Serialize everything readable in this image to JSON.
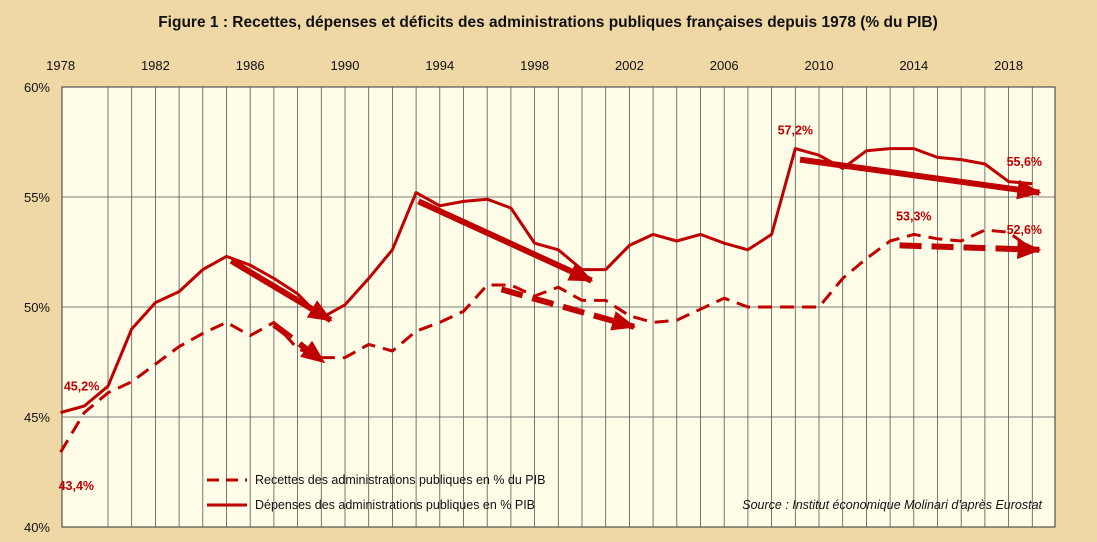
{
  "chart_data": {
    "type": "line",
    "title": "Figure 1 : Recettes, dépenses et déficits des administrations publiques françaises depuis 1978 (% du PIB)",
    "x_tick_labels": [
      "1978",
      "1982",
      "1986",
      "1990",
      "1994",
      "1998",
      "2002",
      "2006",
      "2010",
      "2014",
      "2018"
    ],
    "y_tick_labels": [
      "40%",
      "45%",
      "50%",
      "55%",
      "60%"
    ],
    "y_ticks": [
      40,
      45,
      50,
      55,
      60
    ],
    "xlim": [
      1978,
      2019.6
    ],
    "ylim": [
      40,
      60
    ],
    "grid": true,
    "legend_placement": "bottom-left",
    "x": [
      1978,
      1979,
      1980,
      1981,
      1982,
      1983,
      1984,
      1985,
      1986,
      1987,
      1988,
      1989,
      1990,
      1991,
      1992,
      1993,
      1994,
      1995,
      1996,
      1997,
      1998,
      1999,
      2000,
      2001,
      2002,
      2003,
      2004,
      2005,
      2006,
      2007,
      2008,
      2009,
      2010,
      2011,
      2012,
      2013,
      2014,
      2015,
      2016,
      2017,
      2018,
      2019
    ],
    "series": [
      {
        "name": "Recettes des administrations publiques en % du PIB",
        "style": "dashed",
        "color": "#c00000",
        "values": [
          43.4,
          45.2,
          46.1,
          46.6,
          47.4,
          48.2,
          48.8,
          49.3,
          48.7,
          49.3,
          48.1,
          47.7,
          47.7,
          48.3,
          48.0,
          48.9,
          49.3,
          49.8,
          51.0,
          51.0,
          50.5,
          50.9,
          50.3,
          50.3,
          49.6,
          49.3,
          49.4,
          49.9,
          50.4,
          50.0,
          50.0,
          50.0,
          50.0,
          51.3,
          52.2,
          53.0,
          53.3,
          53.1,
          53.0,
          53.5,
          53.4,
          52.6
        ]
      },
      {
        "name": "Dépenses des administrations publiques en % PIB",
        "style": "solid",
        "color": "#c00000",
        "values": [
          45.2,
          45.5,
          46.4,
          49.0,
          50.2,
          50.7,
          51.7,
          52.3,
          51.9,
          51.3,
          50.6,
          49.5,
          50.1,
          51.3,
          52.6,
          55.2,
          54.6,
          54.8,
          54.9,
          54.5,
          52.9,
          52.6,
          51.7,
          51.7,
          52.8,
          53.3,
          53.0,
          53.3,
          52.9,
          52.6,
          53.3,
          57.2,
          56.9,
          56.3,
          57.1,
          57.2,
          57.2,
          56.8,
          56.7,
          56.5,
          55.7,
          55.6
        ]
      }
    ],
    "trend_arrows": [
      {
        "series": "solid",
        "from": [
          1985.2,
          52.1
        ],
        "to": [
          1989.4,
          49.4
        ]
      },
      {
        "series": "solid",
        "from": [
          1993.1,
          54.8
        ],
        "to": [
          2000.4,
          51.2
        ]
      },
      {
        "series": "solid",
        "from": [
          2009.2,
          56.7
        ],
        "to": [
          2019.3,
          55.2
        ]
      },
      {
        "series": "dashed",
        "from": [
          1987.0,
          49.2
        ],
        "to": [
          1989.1,
          47.5
        ]
      },
      {
        "series": "dashed",
        "from": [
          1996.6,
          50.8
        ],
        "to": [
          2002.2,
          49.1
        ]
      },
      {
        "series": "dashed",
        "from": [
          2013.4,
          52.8
        ],
        "to": [
          2019.3,
          52.6
        ]
      }
    ],
    "annotations": [
      {
        "text": "45,2%",
        "x": 1978,
        "y": 45.2,
        "series": "solid"
      },
      {
        "text": "43,4%",
        "x": 1978,
        "y": 43.4,
        "series": "dashed"
      },
      {
        "text": "57,2%",
        "x": 2009,
        "y": 57.2,
        "series": "solid"
      },
      {
        "text": "55,6%",
        "x": 2019,
        "y": 55.6,
        "series": "solid"
      },
      {
        "text": "53,3%",
        "x": 2014,
        "y": 53.3,
        "series": "dashed"
      },
      {
        "text": "52,6%",
        "x": 2019,
        "y": 52.6,
        "series": "dashed"
      }
    ],
    "source": "Source : Institut économique Molinari d'après Eurostat"
  },
  "colors": {
    "background": "#efd8a6",
    "plot_area": "#fffde8",
    "line": "#c00000",
    "grid": "#333333"
  }
}
